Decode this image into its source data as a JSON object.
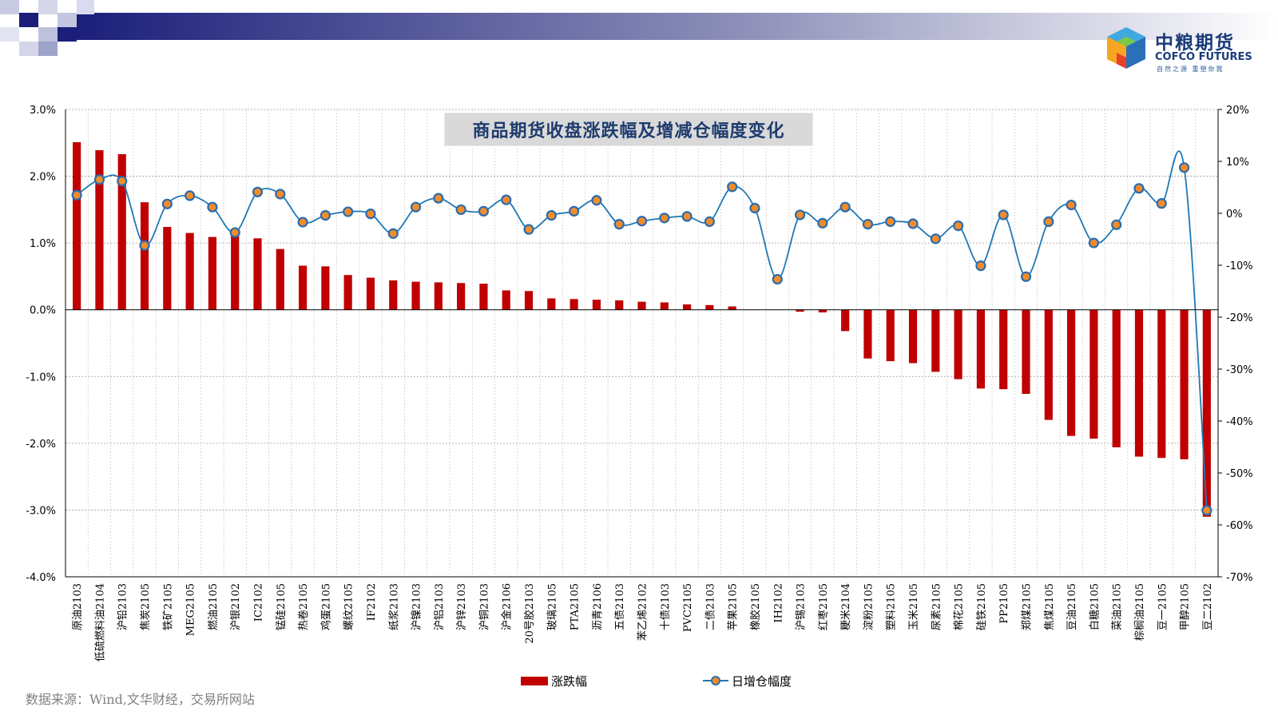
{
  "brand": {
    "name_cn": "中粮期货",
    "name_en": "COFCO FUTURES",
    "tagline": "自然之源 重塑你我"
  },
  "source_note": "数据来源：Wind,文华财经，交易所网站",
  "colors": {
    "bar": "#c00000",
    "line": "#1f78b4",
    "marker_fill": "#f28c28",
    "marker_edge": "#2b6cb0",
    "title_text": "#1f3c6e",
    "header_dark": "#1b1f7a"
  },
  "chart_data": {
    "type": "bar",
    "title": "商品期货收盘涨跌幅及增减仓幅度变化",
    "categories": [
      "原油2103",
      "低硫燃料油2104",
      "沪铅2103",
      "焦炭2105",
      "铁矿2105",
      "MEG2105",
      "燃油2105",
      "沪银2102",
      "IC2102",
      "锰硅2105",
      "热卷2105",
      "鸡蛋2105",
      "螺纹2105",
      "IF2102",
      "纸浆2103",
      "沪镍2103",
      "沪铝2103",
      "沪锌2103",
      "沪铜2103",
      "沪金2106",
      "20号胶2103",
      "玻璃2105",
      "PTA2105",
      "沥青2106",
      "五债2103",
      "苯乙烯2102",
      "十债2103",
      "PVC2105",
      "二债2103",
      "苹果2105",
      "橡胶2105",
      "IH2102",
      "沪锡2103",
      "红枣2105",
      "粳米2104",
      "淀粉2105",
      "塑料2105",
      "玉米2105",
      "尿素2105",
      "棉花2105",
      "硅铁2105",
      "PP2105",
      "郑煤2105",
      "焦煤2105",
      "豆油2105",
      "白糖2105",
      "菜油2105",
      "棕榈油2105",
      "豆一2105",
      "甲醇2105",
      "豆二2102"
    ],
    "series": [
      {
        "name": "涨跌幅",
        "axis": "left",
        "kind": "bar",
        "values": [
          2.51,
          2.39,
          2.33,
          1.61,
          1.24,
          1.15,
          1.09,
          1.14,
          1.07,
          0.91,
          0.66,
          0.65,
          0.52,
          0.48,
          0.44,
          0.42,
          0.41,
          0.4,
          0.39,
          0.29,
          0.28,
          0.17,
          0.16,
          0.15,
          0.14,
          0.12,
          0.11,
          0.08,
          0.07,
          0.05,
          0.0,
          0.0,
          -0.03,
          -0.04,
          -0.32,
          -0.73,
          -0.77,
          -0.8,
          -0.93,
          -1.04,
          -1.18,
          -1.19,
          -1.26,
          -1.65,
          -1.89,
          -1.93,
          -2.06,
          -2.2,
          -2.22,
          -2.24,
          -3.1
        ]
      },
      {
        "name": "日增仓幅度",
        "axis": "right",
        "kind": "line",
        "values": [
          3.5,
          6.5,
          6.2,
          -6.2,
          1.8,
          3.4,
          1.2,
          -3.7,
          4.1,
          3.7,
          -1.7,
          -0.4,
          0.3,
          -0.1,
          -3.9,
          1.2,
          2.9,
          0.7,
          0.4,
          2.6,
          -3.1,
          -0.4,
          0.4,
          2.5,
          -2.1,
          -1.5,
          -0.9,
          -0.6,
          -1.6,
          5.1,
          1.0,
          -12.7,
          -0.3,
          -1.9,
          1.2,
          -2.1,
          -1.6,
          -2.0,
          -4.9,
          -2.4,
          -10.1,
          -0.3,
          -12.2,
          -1.6,
          1.6,
          -5.7,
          -2.2,
          4.8,
          1.9,
          8.8,
          -57.2
        ]
      }
    ],
    "ylim_left": [
      -4.0,
      3.0
    ],
    "ylim_right": [
      -70,
      20
    ],
    "yticks_left": [
      "3.0%",
      "2.0%",
      "1.0%",
      "0.0%",
      "-1.0%",
      "-2.0%",
      "-3.0%",
      "-4.0%"
    ],
    "yticks_right": [
      "20%",
      "10%",
      "0%",
      "-10%",
      "-20%",
      "-30%",
      "-40%",
      "-50%",
      "-60%",
      "-70%"
    ],
    "grid": "horizontal and vertical dotted",
    "legend_position": "bottom-center"
  }
}
